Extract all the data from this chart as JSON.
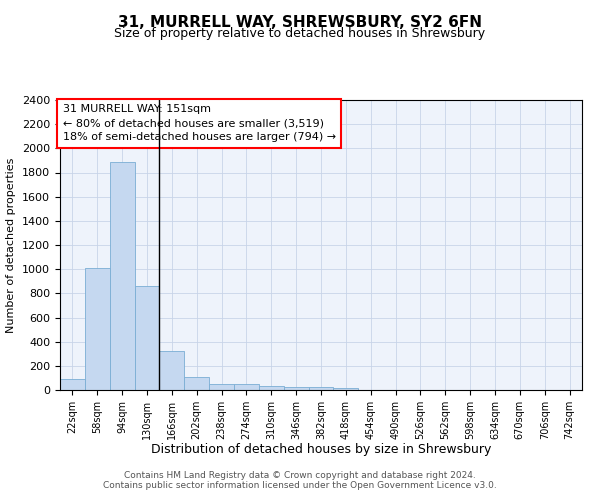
{
  "title": "31, MURRELL WAY, SHREWSBURY, SY2 6FN",
  "subtitle": "Size of property relative to detached houses in Shrewsbury",
  "xlabel": "Distribution of detached houses by size in Shrewsbury",
  "ylabel": "Number of detached properties",
  "bar_color": "#c5d8f0",
  "bar_edge_color": "#7aadd4",
  "background_color": "#eef3fb",
  "categories": [
    "22sqm",
    "58sqm",
    "94sqm",
    "130sqm",
    "166sqm",
    "202sqm",
    "238sqm",
    "274sqm",
    "310sqm",
    "346sqm",
    "382sqm",
    "418sqm",
    "454sqm",
    "490sqm",
    "526sqm",
    "562sqm",
    "598sqm",
    "634sqm",
    "670sqm",
    "706sqm",
    "742sqm"
  ],
  "values": [
    90,
    1010,
    1890,
    860,
    320,
    110,
    50,
    47,
    35,
    22,
    22,
    18,
    0,
    0,
    0,
    0,
    0,
    0,
    0,
    0,
    0
  ],
  "ylim": [
    0,
    2400
  ],
  "yticks": [
    0,
    200,
    400,
    600,
    800,
    1000,
    1200,
    1400,
    1600,
    1800,
    2000,
    2200,
    2400
  ],
  "annotation_line1": "31 MURRELL WAY: 151sqm",
  "annotation_line2": "← 80% of detached houses are smaller (3,519)",
  "annotation_line3": "18% of semi-detached houses are larger (794) →",
  "footer_text": "Contains HM Land Registry data © Crown copyright and database right 2024.\nContains public sector information licensed under the Open Government Licence v3.0.",
  "grid_color": "#c8d4e8",
  "property_line_color": "#000000",
  "title_fontsize": 11,
  "subtitle_fontsize": 9,
  "ylabel_fontsize": 8,
  "xlabel_fontsize": 9,
  "tick_fontsize": 8,
  "xtick_fontsize": 7
}
